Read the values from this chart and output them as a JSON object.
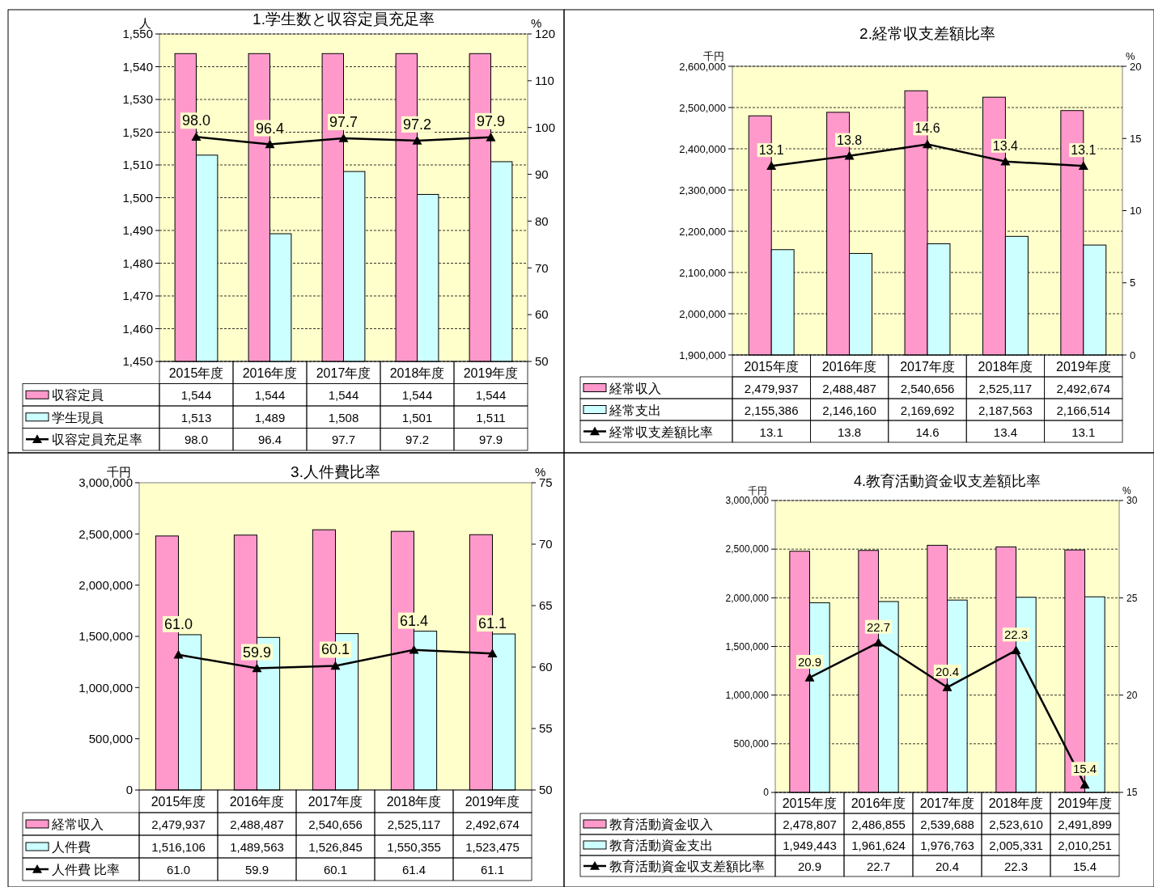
{
  "chart_data": [
    {
      "type": "bar",
      "title": "1.学生数と収容定員充足率",
      "ylabel": "人",
      "y2label": "%",
      "categories": [
        "2015年度",
        "2016年度",
        "2017年度",
        "2018年度",
        "2019年度"
      ],
      "series": [
        {
          "name": "収容定員",
          "color": "#ff99cc",
          "values": [
            1544,
            1544,
            1544,
            1544,
            1544
          ],
          "value_labels": [
            "1,544",
            "1,544",
            "1,544",
            "1,544",
            "1,544"
          ]
        },
        {
          "name": "学生現員",
          "color": "#ccffff",
          "values": [
            1513,
            1489,
            1508,
            1501,
            1511
          ],
          "value_labels": [
            "1,513",
            "1,489",
            "1,508",
            "1,501",
            "1,511"
          ]
        },
        {
          "name": "収容定員充足率",
          "type": "line",
          "axis": "y2",
          "color": "#000000",
          "values": [
            98.0,
            96.4,
            97.7,
            97.2,
            97.9
          ],
          "value_labels": [
            "98.0",
            "96.4",
            "97.7",
            "97.2",
            "97.9"
          ]
        }
      ],
      "ylim": [
        1450,
        1550
      ],
      "yticks": [
        {
          "value": 1450,
          "label": "1,450"
        },
        {
          "value": 1460,
          "label": "1,460"
        },
        {
          "value": 1470,
          "label": "1,470"
        },
        {
          "value": 1480,
          "label": "1,480"
        },
        {
          "value": 1490,
          "label": "1,490"
        },
        {
          "value": 1500,
          "label": "1,500"
        },
        {
          "value": 1510,
          "label": "1,510"
        },
        {
          "value": 1520,
          "label": "1,520"
        },
        {
          "value": 1530,
          "label": "1,530"
        },
        {
          "value": 1540,
          "label": "1,540"
        },
        {
          "value": 1550,
          "label": "1,550"
        }
      ],
      "y2lim": [
        50,
        120
      ],
      "y2ticks": [
        50,
        60,
        70,
        80,
        90,
        100,
        110,
        120
      ],
      "grid": "y",
      "legend": "bottom",
      "marker": "triangle"
    },
    {
      "type": "bar",
      "title": "2.経常収支差額比率",
      "ylabel": "千円",
      "y2label": "%",
      "categories": [
        "2015年度",
        "2016年度",
        "2017年度",
        "2018年度",
        "2019年度"
      ],
      "series": [
        {
          "name": "経常収入",
          "color": "#ff99cc",
          "values": [
            2479937,
            2488487,
            2540656,
            2525117,
            2492674
          ],
          "value_labels": [
            "2,479,937",
            "2,488,487",
            "2,540,656",
            "2,525,117",
            "2,492,674"
          ]
        },
        {
          "name": "経常支出",
          "color": "#ccffff",
          "values": [
            2155386,
            2146160,
            2169692,
            2187563,
            2166514
          ],
          "value_labels": [
            "2,155,386",
            "2,146,160",
            "2,169,692",
            "2,187,563",
            "2,166,514"
          ]
        },
        {
          "name": "経常収支差額比率",
          "type": "line",
          "axis": "y2",
          "color": "#000000",
          "values": [
            13.1,
            13.8,
            14.6,
            13.4,
            13.1
          ],
          "value_labels": [
            "13.1",
            "13.8",
            "14.6",
            "13.4",
            "13.1"
          ]
        }
      ],
      "ylim": [
        1900000,
        2600000
      ],
      "yticks": [
        {
          "value": 1900000,
          "label": "1,900,000"
        },
        {
          "value": 2000000,
          "label": "2,000,000"
        },
        {
          "value": 2100000,
          "label": "2,100,000"
        },
        {
          "value": 2200000,
          "label": "2,200,000"
        },
        {
          "value": 2300000,
          "label": "2,300,000"
        },
        {
          "value": 2400000,
          "label": "2,400,000"
        },
        {
          "value": 2500000,
          "label": "2,500,000"
        },
        {
          "value": 2600000,
          "label": "2,600,000"
        }
      ],
      "y2lim": [
        0,
        20
      ],
      "y2ticks": [
        0,
        5,
        10,
        15,
        20
      ],
      "grid": "y",
      "legend": "bottom",
      "marker": "triangle"
    },
    {
      "type": "bar",
      "title": "3.人件費比率",
      "ylabel": "千円",
      "y2label": "%",
      "categories": [
        "2015年度",
        "2016年度",
        "2017年度",
        "2018年度",
        "2019年度"
      ],
      "series": [
        {
          "name": "経常収入",
          "color": "#ff99cc",
          "values": [
            2479937,
            2488487,
            2540656,
            2525117,
            2492674
          ],
          "value_labels": [
            "2,479,937",
            "2,488,487",
            "2,540,656",
            "2,525,117",
            "2,492,674"
          ]
        },
        {
          "name": "人件費",
          "color": "#ccffff",
          "values": [
            1516106,
            1489563,
            1526845,
            1550355,
            1523475
          ],
          "value_labels": [
            "1,516,106",
            "1,489,563",
            "1,526,845",
            "1,550,355",
            "1,523,475"
          ]
        },
        {
          "name": "人件費  比率",
          "type": "line",
          "axis": "y2",
          "color": "#000000",
          "values": [
            61.0,
            59.9,
            60.1,
            61.4,
            61.1
          ],
          "value_labels": [
            "61.0",
            "59.9",
            "60.1",
            "61.4",
            "61.1"
          ]
        }
      ],
      "ylim": [
        0,
        3000000
      ],
      "yticks": [
        0,
        {
          "value": 500000,
          "label": "500,000"
        },
        {
          "value": 1000000,
          "label": "1,000,000"
        },
        {
          "value": 1500000,
          "label": "1,500,000"
        },
        {
          "value": 2000000,
          "label": "2,000,000"
        },
        {
          "value": 2500000,
          "label": "2,500,000"
        },
        {
          "value": 3000000,
          "label": "3,000,000"
        }
      ],
      "y2lim": [
        50,
        75
      ],
      "y2ticks": [
        50,
        55,
        60,
        65,
        70,
        75
      ],
      "legend": "bottom",
      "marker": "triangle"
    },
    {
      "type": "bar",
      "title": "4.教育活動資金収支差額比率",
      "ylabel": "千円",
      "y2label": "%",
      "categories": [
        "2015年度",
        "2016年度",
        "2017年度",
        "2018年度",
        "2019年度"
      ],
      "series": [
        {
          "name": "教育活動資金収入",
          "color": "#ff99cc",
          "values": [
            2478807,
            2486855,
            2539688,
            2523610,
            2491899
          ],
          "value_labels": [
            "2,478,807",
            "2,486,855",
            "2,539,688",
            "2,523,610",
            "2,491,899"
          ]
        },
        {
          "name": "教育活動資金支出",
          "color": "#ccffff",
          "values": [
            1949443,
            1961624,
            1976763,
            2005331,
            2010251
          ],
          "value_labels": [
            "1,949,443",
            "1,961,624",
            "1,976,763",
            "2,005,331",
            "2,010,251"
          ]
        },
        {
          "name": "教育活動資金収支差額比率",
          "type": "line",
          "axis": "y2",
          "color": "#000000",
          "values": [
            20.9,
            22.7,
            20.4,
            22.3,
            15.4
          ],
          "value_labels": [
            "20.9",
            "22.7",
            "20.4",
            "22.3",
            "15.4"
          ]
        }
      ],
      "ylim": [
        0,
        3000000
      ],
      "yticks": [
        0,
        {
          "value": 500000,
          "label": "500,000"
        },
        {
          "value": 1000000,
          "label": "1,000,000"
        },
        {
          "value": 1500000,
          "label": "1,500,000"
        },
        {
          "value": 2000000,
          "label": "2,000,000"
        },
        {
          "value": 2500000,
          "label": "2,500,000"
        },
        {
          "value": 3000000,
          "label": "3,000,000"
        }
      ],
      "y2lim": [
        15,
        30
      ],
      "y2ticks": [
        15,
        20,
        25,
        30
      ],
      "grid": "y",
      "legend": "bottom",
      "marker": "triangle"
    }
  ]
}
